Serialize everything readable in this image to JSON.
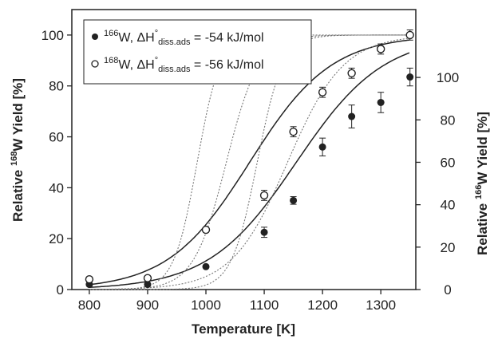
{
  "chart_data": {
    "type": "scatter",
    "xlabel": "Temperature [K]",
    "ylabel_left": "Relative 168W Yield [%]",
    "ylabel_right": "Relative 166W Yield [%]",
    "xlim": [
      770,
      1360
    ],
    "ylim_left": [
      0,
      110
    ],
    "ylim_right": [
      0,
      132
    ],
    "x_ticks": [
      800,
      900,
      1000,
      1100,
      1200,
      1300
    ],
    "y_ticks_left": [
      0,
      20,
      40,
      60,
      80,
      100
    ],
    "y_ticks_right": [
      0,
      20,
      40,
      60,
      80,
      100
    ],
    "grid": false,
    "legend_position": "top-left",
    "legend": [
      {
        "isotope": "166",
        "element": "W",
        "delta": "ΔH",
        "degree": "°",
        "subscript": "diss.ads",
        "value": " = -54 kJ/mol",
        "marker": "filled"
      },
      {
        "isotope": "168",
        "element": "W",
        "delta": "ΔH",
        "degree": "°",
        "subscript": "diss.ads",
        "value": " = -56 kJ/mol",
        "marker": "open"
      }
    ],
    "series": [
      {
        "marker": "filled",
        "x": [
          800,
          900,
          1000,
          1100,
          1150,
          1200,
          1250,
          1300,
          1350
        ],
        "y": [
          2,
          2,
          9,
          22.5,
          35,
          56,
          68,
          73.5,
          83.5
        ],
        "err": [
          0,
          0,
          0,
          2,
          1.5,
          3.5,
          4.5,
          4,
          3.5
        ]
      },
      {
        "marker": "open",
        "x": [
          800,
          900,
          1000,
          1100,
          1150,
          1200,
          1250,
          1300,
          1350
        ],
        "y": [
          4,
          4.5,
          23.5,
          37,
          62,
          77.5,
          85,
          94.5,
          100
        ],
        "err": [
          0,
          0,
          0,
          2,
          2,
          2,
          2,
          2,
          2
        ]
      }
    ],
    "fit_curves": [
      {
        "style": "solid",
        "midpoint": 1075,
        "width": 70
      },
      {
        "style": "solid",
        "midpoint": 1155,
        "width": 75
      },
      {
        "style": "dotted",
        "midpoint": 985,
        "width": 20
      },
      {
        "style": "dotted",
        "midpoint": 1035,
        "width": 28
      },
      {
        "style": "dotted",
        "midpoint": 1088,
        "width": 22
      },
      {
        "style": "dotted",
        "midpoint": 1140,
        "width": 48
      }
    ]
  }
}
